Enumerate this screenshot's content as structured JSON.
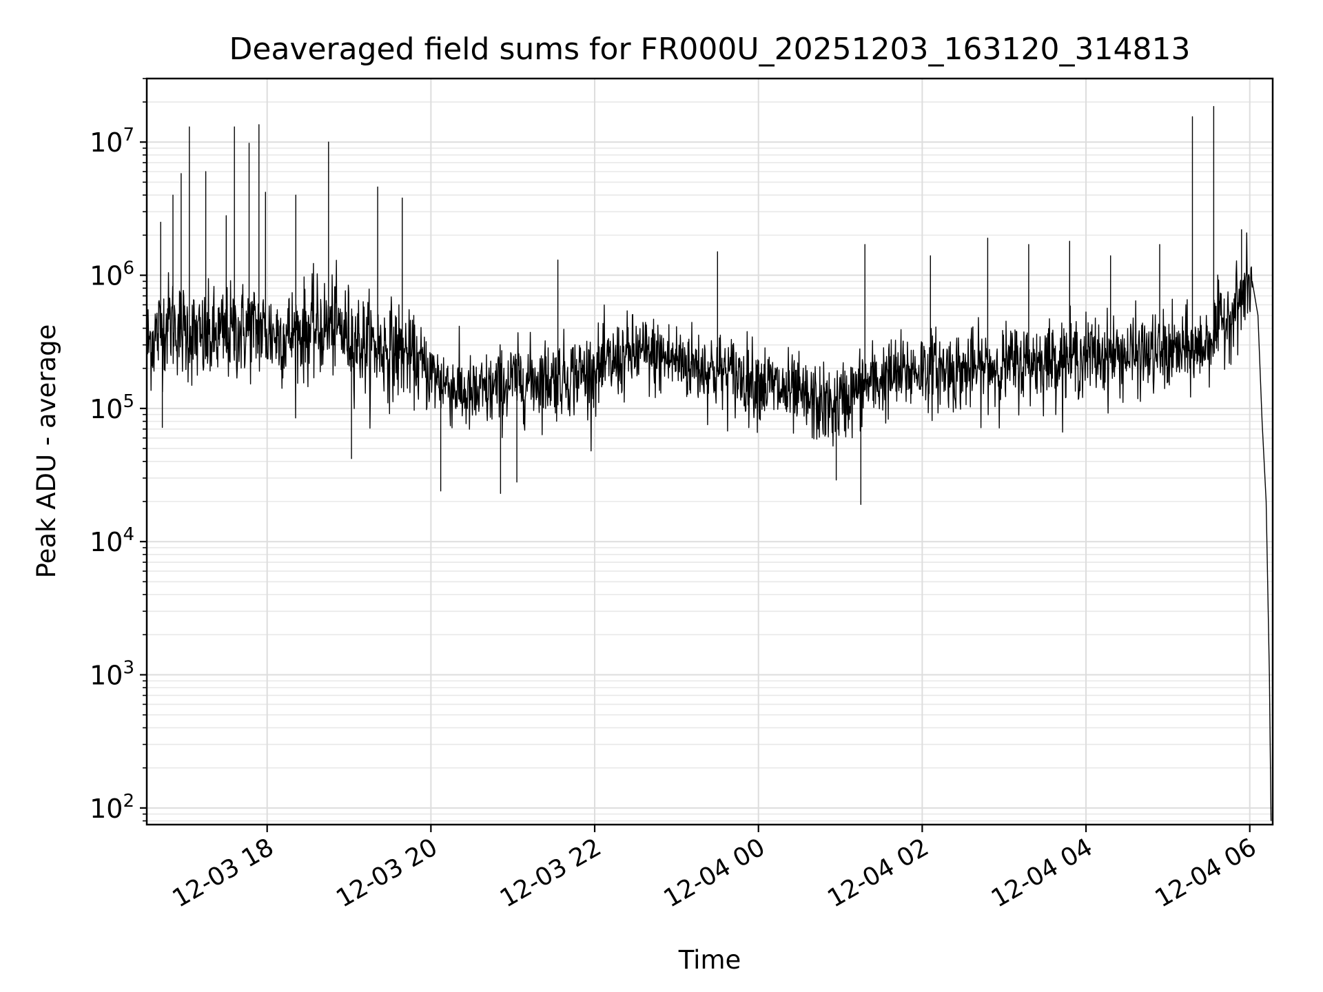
{
  "chart_data": {
    "type": "line",
    "title": "Deaveraged field sums for FR000U_20251203_163120_314813",
    "xlabel": "Time",
    "ylabel": "Peak ADU - average",
    "yscale": "log",
    "ylim": [
      75,
      30000000
    ],
    "xlim_hours": [
      16.53,
      30.28
    ],
    "grid": true,
    "x_ticks": [
      {
        "label": "12-03 18",
        "hours": 18
      },
      {
        "label": "12-03 20",
        "hours": 20
      },
      {
        "label": "12-03 22",
        "hours": 22
      },
      {
        "label": "12-04 00",
        "hours": 24
      },
      {
        "label": "12-04 02",
        "hours": 26
      },
      {
        "label": "12-04 04",
        "hours": 28
      },
      {
        "label": "12-04 06",
        "hours": 30
      }
    ],
    "y_ticks": [
      {
        "base": "10",
        "exp": "2",
        "value": 100
      },
      {
        "base": "10",
        "exp": "3",
        "value": 1000
      },
      {
        "base": "10",
        "exp": "4",
        "value": 10000
      },
      {
        "base": "10",
        "exp": "5",
        "value": 100000
      },
      {
        "base": "10",
        "exp": "6",
        "value": 1000000
      },
      {
        "base": "10",
        "exp": "7",
        "value": 10000000
      }
    ],
    "series": [
      {
        "name": "deaveraged field sum",
        "color": "#000000",
        "baseline": [
          [
            16.53,
            300000
          ],
          [
            16.8,
            450000
          ],
          [
            17.2,
            320000
          ],
          [
            17.8,
            400000
          ],
          [
            18.2,
            350000
          ],
          [
            18.8,
            420000
          ],
          [
            19.2,
            300000
          ],
          [
            19.7,
            260000
          ],
          [
            20.0,
            180000
          ],
          [
            20.5,
            120000
          ],
          [
            21.0,
            160000
          ],
          [
            21.5,
            170000
          ],
          [
            22.0,
            190000
          ],
          [
            22.5,
            260000
          ],
          [
            23.0,
            230000
          ],
          [
            23.5,
            190000
          ],
          [
            24.0,
            160000
          ],
          [
            24.5,
            120000
          ],
          [
            24.9,
            100000
          ],
          [
            25.3,
            150000
          ],
          [
            26.0,
            200000
          ],
          [
            26.5,
            190000
          ],
          [
            27.0,
            210000
          ],
          [
            27.5,
            230000
          ],
          [
            28.0,
            250000
          ],
          [
            28.5,
            250000
          ],
          [
            29.0,
            260000
          ],
          [
            29.4,
            280000
          ],
          [
            29.85,
            600000
          ],
          [
            30.03,
            900000
          ]
        ],
        "spikes": [
          [
            16.7,
            2500000
          ],
          [
            16.85,
            4000000
          ],
          [
            16.95,
            5800000
          ],
          [
            17.05,
            13000000
          ],
          [
            17.25,
            6000000
          ],
          [
            17.5,
            2800000
          ],
          [
            17.6,
            13000000
          ],
          [
            17.78,
            9800000
          ],
          [
            17.9,
            13500000
          ],
          [
            17.98,
            4200000
          ],
          [
            18.35,
            4000000
          ],
          [
            18.75,
            10000000
          ],
          [
            19.35,
            4600000
          ],
          [
            19.65,
            3800000
          ],
          [
            21.55,
            1300000
          ],
          [
            23.5,
            1500000
          ],
          [
            25.3,
            1700000
          ],
          [
            26.1,
            1400000
          ],
          [
            26.8,
            1900000
          ],
          [
            27.3,
            1700000
          ],
          [
            27.8,
            1800000
          ],
          [
            28.3,
            1400000
          ],
          [
            28.9,
            1700000
          ],
          [
            29.3,
            15500000
          ],
          [
            29.56,
            18500000
          ],
          [
            29.9,
            2200000
          ]
        ],
        "dips": [
          [
            16.72,
            72000
          ],
          [
            19.03,
            42000
          ],
          [
            20.12,
            24000
          ],
          [
            20.85,
            23000
          ],
          [
            21.05,
            28000
          ],
          [
            24.95,
            29000
          ],
          [
            25.25,
            19000
          ]
        ],
        "tail": [
          [
            30.03,
            900000
          ],
          [
            30.1,
            500000
          ],
          [
            30.15,
            80000
          ],
          [
            30.2,
            20000
          ],
          [
            30.24,
            1000
          ],
          [
            30.26,
            80
          ]
        ]
      }
    ]
  }
}
